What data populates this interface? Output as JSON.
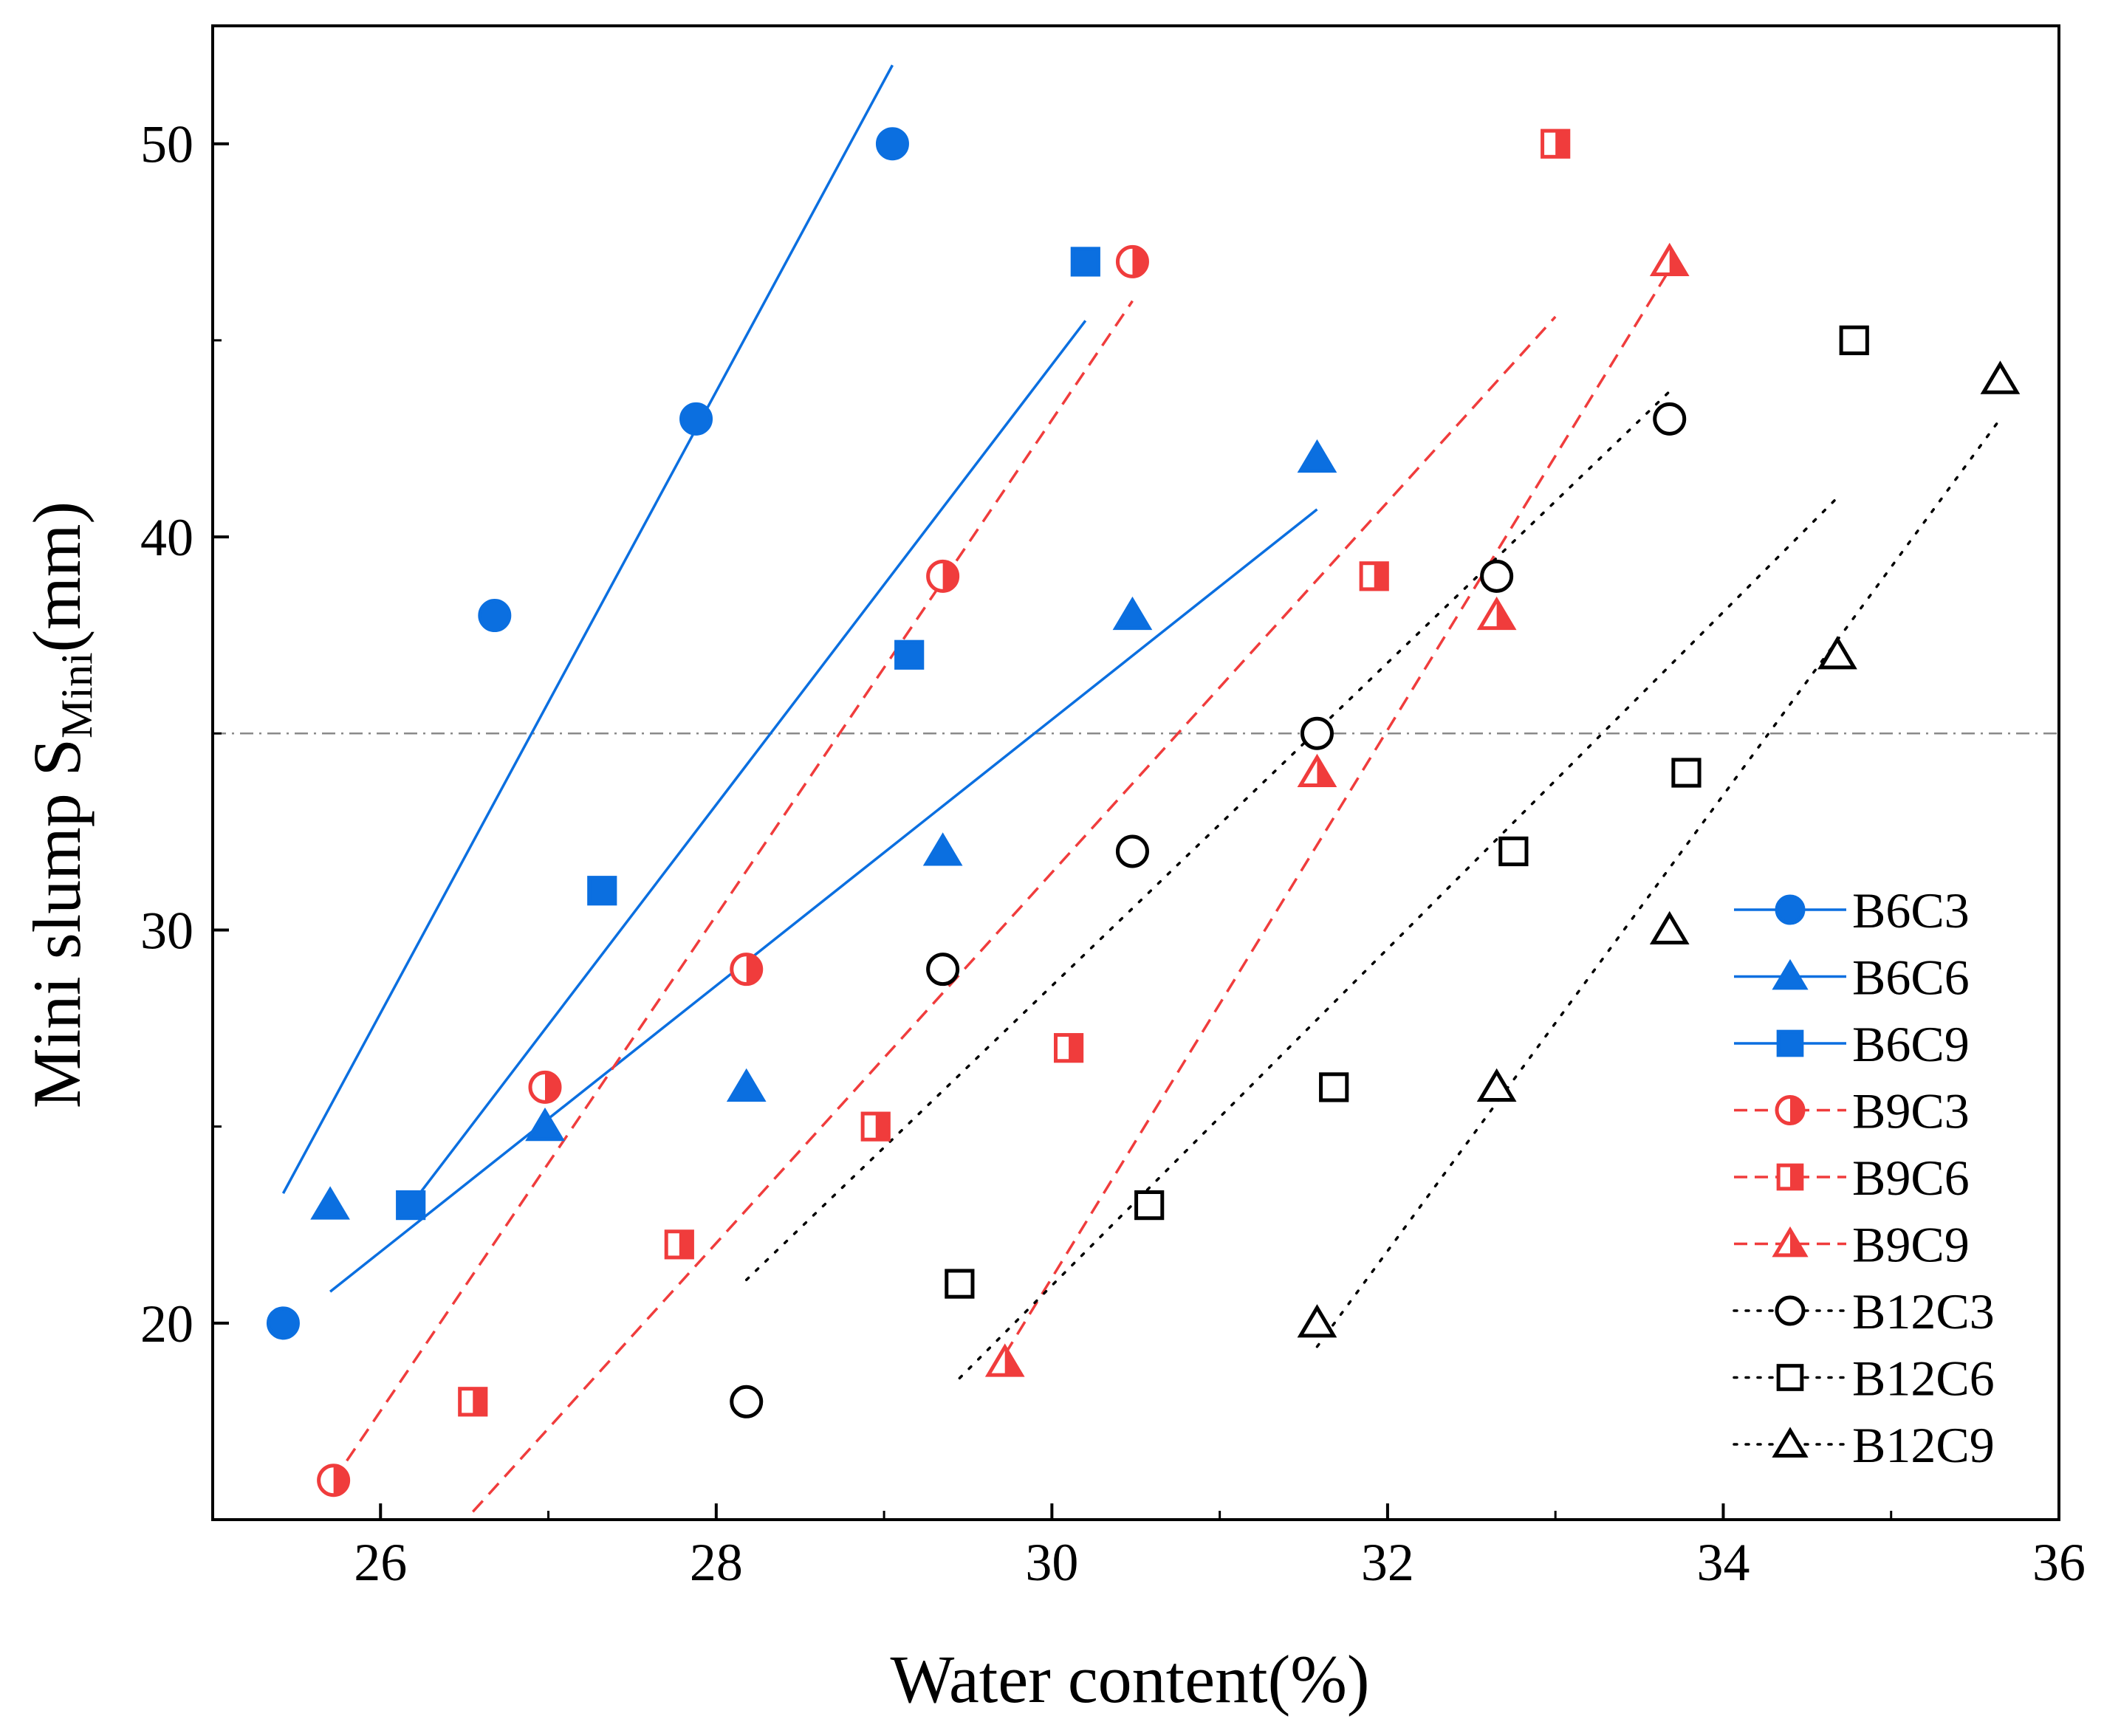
{
  "chart_data": {
    "type": "scatter",
    "xlabel": "Water content(%)",
    "ylabel": {
      "main": "Mini slump S",
      "subscript": "Mini",
      "suffix": "(mm)"
    },
    "xlim": [
      25,
      36
    ],
    "ylim": [
      15,
      53
    ],
    "xticks": [
      "26",
      "28",
      "30",
      "32",
      "34",
      "36"
    ],
    "yticks": [
      "20",
      "30",
      "40",
      "50"
    ],
    "reference_line_y": 35,
    "legend_position": "right",
    "series": [
      {
        "name": "B6C3",
        "color": "#0b6fe0",
        "marker": "circle-filled",
        "line": "solid",
        "x": [
          25.42,
          26.68,
          27.88,
          29.05
        ],
        "y": [
          20,
          38,
          43,
          50
        ],
        "fit": {
          "x0": 25.42,
          "y0": 23.3,
          "x1": 29.05,
          "y1": 52
        }
      },
      {
        "name": "B6C6",
        "color": "#0b6fe0",
        "marker": "triangle-filled",
        "line": "solid",
        "x": [
          25.7,
          26.98,
          28.18,
          29.35,
          30.48,
          31.58
        ],
        "y": [
          23,
          25,
          26,
          32,
          38,
          42
        ],
        "fit": {
          "x0": 25.7,
          "y0": 20.8,
          "x1": 31.58,
          "y1": 40.7
        }
      },
      {
        "name": "B6C9",
        "color": "#0b6fe0",
        "marker": "square-filled",
        "line": "solid",
        "x": [
          26.18,
          27.32,
          29.15,
          30.2
        ],
        "y": [
          23,
          31,
          37,
          47
        ],
        "fit": {
          "x0": 26.18,
          "y0": 23.0,
          "x1": 30.2,
          "y1": 45.5
        }
      },
      {
        "name": "B9C3",
        "color": "#f03c3c",
        "marker": "circle-half",
        "line": "dashed",
        "x": [
          25.72,
          26.98,
          28.18,
          29.35,
          30.48
        ],
        "y": [
          16,
          26,
          29,
          39,
          47
        ],
        "fit": {
          "x0": 25.72,
          "y0": 16.0,
          "x1": 30.48,
          "y1": 46.0
        }
      },
      {
        "name": "B9C6",
        "color": "#f03c3c",
        "marker": "square-half",
        "line": "dashed",
        "x": [
          26.55,
          27.78,
          28.95,
          30.1,
          31.92,
          33.0
        ],
        "y": [
          18,
          22,
          25,
          27,
          39,
          50
        ],
        "fit": {
          "x0": 26.55,
          "y0": 15.2,
          "x1": 33.0,
          "y1": 45.6
        }
      },
      {
        "name": "B9C9",
        "color": "#f03c3c",
        "marker": "triangle-half",
        "line": "dashed",
        "x": [
          29.72,
          31.58,
          32.65,
          33.68
        ],
        "y": [
          19,
          34,
          38,
          47
        ],
        "fit": {
          "x0": 29.72,
          "y0": 19.2,
          "x1": 33.68,
          "y1": 46.8
        }
      },
      {
        "name": "B12C3",
        "color": "#000000",
        "marker": "circle-open",
        "line": "dotted",
        "x": [
          28.18,
          29.35,
          30.48,
          31.58,
          32.65,
          33.68
        ],
        "y": [
          18,
          29,
          32,
          35,
          39,
          43
        ],
        "fit": {
          "x0": 28.18,
          "y0": 21.1,
          "x1": 33.68,
          "y1": 43.7
        }
      },
      {
        "name": "B12C6",
        "color": "#000000",
        "marker": "square-open",
        "line": "dotted",
        "x": [
          29.45,
          30.58,
          31.68,
          32.75,
          33.78,
          34.78
        ],
        "y": [
          21,
          23,
          26,
          32,
          34,
          45
        ],
        "fit": {
          "x0": 29.45,
          "y0": 18.6,
          "x1": 34.68,
          "y1": 41.0
        }
      },
      {
        "name": "B12C9",
        "color": "#000000",
        "marker": "triangle-open",
        "line": "dotted",
        "x": [
          31.58,
          32.65,
          33.68,
          34.68,
          35.65
        ],
        "y": [
          20,
          26,
          30,
          37,
          44
        ],
        "fit": {
          "x0": 31.58,
          "y0": 19.4,
          "x1": 35.65,
          "y1": 43.0
        }
      }
    ]
  }
}
